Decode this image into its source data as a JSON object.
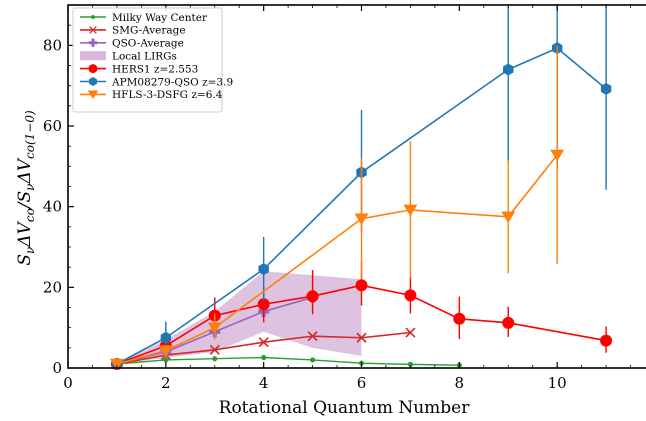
{
  "chart_data": {
    "type": "line",
    "xlabel": "Rotational Quantum Number",
    "ylabel": "S_ν ΔV_co / S_ν ΔV_co(1−0)",
    "ylabel_main": "S",
    "ylabel_sub1": "ν",
    "ylabel_mid": "ΔV",
    "ylabel_sub2": "co",
    "ylabel_slash": "/S",
    "ylabel_sub3": "ν",
    "ylabel_mid2": "ΔV",
    "ylabel_sub4": "co(1−0)",
    "xlim": [
      0,
      12
    ],
    "ylim": [
      0,
      90
    ],
    "xticks": [
      0,
      2,
      4,
      6,
      8,
      10
    ],
    "yticks": [
      0,
      20,
      40,
      60,
      80
    ],
    "legend_position": "top-left",
    "band": {
      "name": "Local LIRGs",
      "color": "#d7b8da",
      "x": [
        1,
        2,
        3,
        4,
        5,
        6
      ],
      "lower": [
        1,
        2.5,
        4,
        9,
        5,
        3
      ],
      "upper": [
        1,
        7,
        14,
        24,
        23,
        22
      ]
    },
    "series": [
      {
        "name": "Milky Way Center",
        "color": "#2ca02c",
        "marker": "dot",
        "x": [
          1,
          2,
          3,
          4,
          5,
          6,
          7,
          8
        ],
        "y": [
          1,
          2,
          2.3,
          2.6,
          2,
          1.2,
          0.9,
          0.7
        ]
      },
      {
        "name": "SMG-Average",
        "color": "#d62728",
        "marker": "x",
        "x": [
          1,
          2,
          3,
          4,
          5,
          6,
          7
        ],
        "y": [
          1,
          3.2,
          4.5,
          6.4,
          7.9,
          7.5,
          8.8
        ]
      },
      {
        "name": "QSO-Average",
        "color": "#9467bd",
        "marker": "plus",
        "x": [
          1,
          2,
          3,
          4,
          5
        ],
        "y": [
          1,
          4,
          9,
          14,
          17.5
        ]
      },
      {
        "name": "HERS1 z=2.553",
        "color": "#ff0000",
        "marker": "circle",
        "x": [
          1,
          2,
          3,
          4,
          5,
          6,
          7,
          8,
          9,
          11
        ],
        "y": [
          1,
          5.5,
          13,
          15.8,
          17.8,
          20.5,
          18,
          12.2,
          11.2,
          6.8
        ],
        "yerr_low": [
          0,
          1.5,
          3.5,
          4.5,
          4.5,
          5,
          4.5,
          5,
          3.5,
          3
        ],
        "yerr_high": [
          0,
          1.5,
          4.5,
          4.5,
          6.5,
          6,
          4.5,
          5.5,
          4,
          3.5
        ]
      },
      {
        "name": "APM08279-QSO z=3.9",
        "color": "#1f77b4",
        "marker": "hexagon",
        "x": [
          1,
          2,
          4,
          6,
          9,
          10,
          11
        ],
        "y": [
          1,
          7.5,
          24.5,
          48.5,
          74,
          79.3,
          69.2
        ],
        "yerr_low": [
          0,
          3,
          8,
          15,
          23,
          30,
          25
        ],
        "yerr_high": [
          0,
          4,
          8,
          15.5,
          23,
          30,
          25
        ]
      },
      {
        "name": "HFLS-3-DSFG z=6.4",
        "color": "#ff7f0e",
        "marker": "triangle-down",
        "x": [
          1,
          2,
          3,
          6,
          7,
          9,
          10
        ],
        "y": [
          1,
          4.3,
          10,
          37,
          39.2,
          37.5,
          52.8
        ],
        "yerr_low": [
          0,
          1.3,
          3,
          15,
          17,
          14,
          27
        ],
        "yerr_high": [
          0,
          1.3,
          3.5,
          15,
          17,
          14,
          27
        ]
      }
    ]
  }
}
